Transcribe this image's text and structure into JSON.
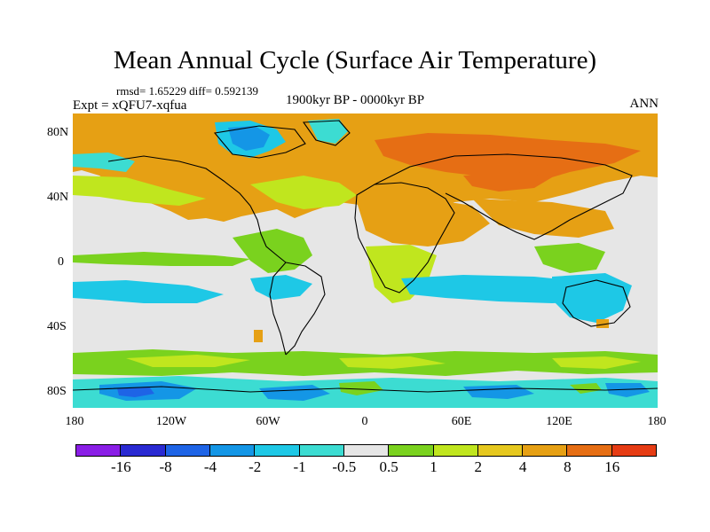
{
  "title": "Mean Annual Cycle (Surface Air Temperature)",
  "stats": "rmsd= 1.65229 diff= 0.592139",
  "experiment": "Expt = xQFU7-xqfua",
  "period": "1900kyr BP - 0000kyr BP",
  "season": "ANN",
  "lat_labels": [
    "80N",
    "40N",
    "0",
    "40S",
    "80S"
  ],
  "lon_labels": [
    "180",
    "120W",
    "60W",
    "0",
    "60E",
    "120E",
    "180"
  ],
  "colorbar": {
    "colors": [
      "#8a1ee6",
      "#2a2ad2",
      "#1e64e6",
      "#1496e6",
      "#1ec8e6",
      "#3cdcd2",
      "#e6e6e6",
      "#7ad21e",
      "#c0e61e",
      "#e6c81e",
      "#e6a014",
      "#e66e14",
      "#e63c14"
    ],
    "labels": [
      "-16",
      "-8",
      "-4",
      "-2",
      "-1",
      "-0.5",
      "0.5",
      "1",
      "2",
      "4",
      "8",
      "16"
    ]
  },
  "map_colors": {
    "neutral": "#e6e6e6",
    "warm_strong": "#e6a014",
    "warm_mid": "#e6c81e",
    "warm_light": "#c0e61e",
    "warm_weak": "#7ad21e",
    "cool_weak": "#3cdcd2",
    "cool_mid": "#1ec8e6",
    "cool_strong": "#1496e6",
    "cool_extreme": "#1e64e6",
    "hot": "#e66e14",
    "coast": "#000000"
  }
}
